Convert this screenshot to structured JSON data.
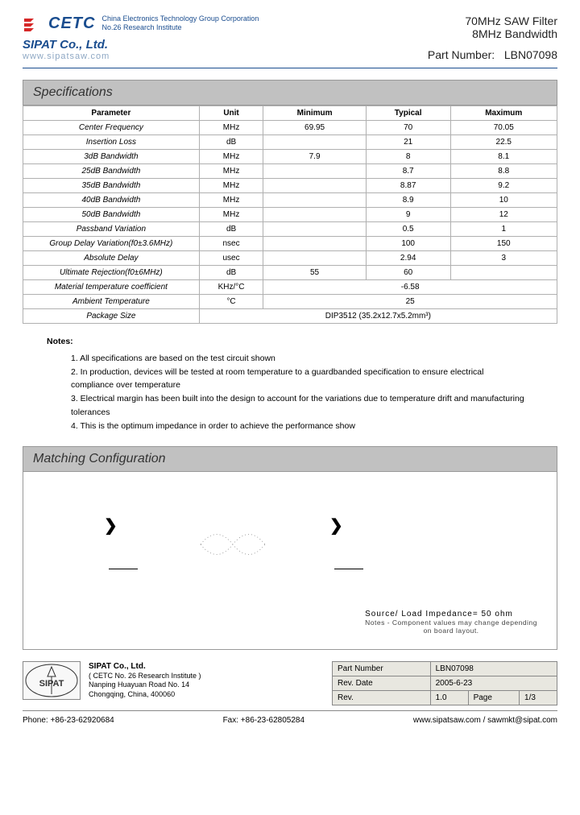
{
  "header": {
    "cetc_name": "CETC",
    "cetc_line1": "China Electronics Technology Group Corporation",
    "cetc_line2": "No.26 Research Institute",
    "sipat_name": "SIPAT Co., Ltd.",
    "sipat_url": "www.sipatsaw.com",
    "product_line1": "70MHz SAW Filter",
    "product_line2": "8MHz Bandwidth",
    "part_number_label": "Part Number:",
    "part_number": "LBN07098"
  },
  "sections": {
    "specs_title": "Specifications",
    "matching_title": "Matching Configuration"
  },
  "spec_headers": {
    "param": "Parameter",
    "unit": "Unit",
    "min": "Minimum",
    "typ": "Typical",
    "max": "Maximum"
  },
  "specs": [
    {
      "param": "Center Frequency",
      "unit": "MHz",
      "min": "69.95",
      "typ": "70",
      "max": "70.05"
    },
    {
      "param": "Insertion Loss",
      "unit": "dB",
      "min": "",
      "typ": "21",
      "max": "22.5"
    },
    {
      "param": "3dB Bandwidth",
      "unit": "MHz",
      "min": "7.9",
      "typ": "8",
      "max": "8.1"
    },
    {
      "param": "25dB Bandwidth",
      "unit": "MHz",
      "min": "",
      "typ": "8.7",
      "max": "8.8"
    },
    {
      "param": "35dB Bandwidth",
      "unit": "MHz",
      "min": "",
      "typ": "8.87",
      "max": "9.2"
    },
    {
      "param": "40dB Bandwidth",
      "unit": "MHz",
      "min": "",
      "typ": "8.9",
      "max": "10"
    },
    {
      "param": "50dB Bandwidth",
      "unit": "MHz",
      "min": "",
      "typ": "9",
      "max": "12"
    },
    {
      "param": "Passband Variation",
      "unit": "dB",
      "min": "",
      "typ": "0.5",
      "max": "1"
    },
    {
      "param": "Group Delay Variation(f0±3.6MHz)",
      "unit": "nsec",
      "min": "",
      "typ": "100",
      "max": "150"
    },
    {
      "param": "Absolute Delay",
      "unit": "usec",
      "min": "",
      "typ": "2.94",
      "max": "3"
    },
    {
      "param": "Ultimate Rejection(f0±6MHz)",
      "unit": "dB",
      "min": "55",
      "typ": "60",
      "max": ""
    },
    {
      "param": "Material temperature coefficient",
      "unit": "KHz/°C",
      "min": "",
      "typ": "-6.58",
      "max": "",
      "span": 3
    },
    {
      "param": "Ambient Temperature",
      "unit": "°C",
      "min": "",
      "typ": "25",
      "max": "",
      "span": 3
    },
    {
      "param": "Package Size",
      "unit": "",
      "min": "",
      "typ": "DIP3512   (35.2x12.7x5.2mm³)",
      "max": "",
      "span": 4
    }
  ],
  "notes": {
    "title": "Notes:",
    "items": [
      "1. All specifications are based on the test circuit shown",
      "2. In production, devices will be tested at room temperature to a guardbanded specification to ensure electrical compliance over temperature",
      "3. Electrical margin has been built into the design to account for the variations due to temperature drift and manufacturing tolerances",
      "4. This is the optimum impedance in order to achieve the performance show"
    ]
  },
  "matching": {
    "impedance": "Source/ Load Impedance= 50 ohm",
    "impedance_sub1": "Notes - Component values may change depending",
    "impedance_sub2": "on board layout."
  },
  "footer": {
    "logo_text": "SIPAT",
    "company_name": "SIPAT Co., Ltd.",
    "company_sub": "( CETC No. 26 Research Institute )",
    "addr1": "Nanping Huayuan Road No. 14",
    "addr2": "Chongqing, China, 400060",
    "tbl_pn_label": "Part Number",
    "tbl_pn": "LBN07098",
    "tbl_date_label": "Rev. Date",
    "tbl_date": "2005-6-23",
    "tbl_rev_label": "Rev.",
    "tbl_rev": "1.0",
    "tbl_page_label": "Page",
    "tbl_page": "1/3",
    "phone": "Phone: +86-23-62920684",
    "fax": "Fax: +86-23-62805284",
    "web": "www.sipatsaw.com / sawmkt@sipat.com"
  },
  "colors": {
    "brand_blue": "#1a4d8f",
    "header_gray": "#c1c1c1",
    "border_gray": "#b0b0b0",
    "footer_cell": "#e8e7e0"
  }
}
